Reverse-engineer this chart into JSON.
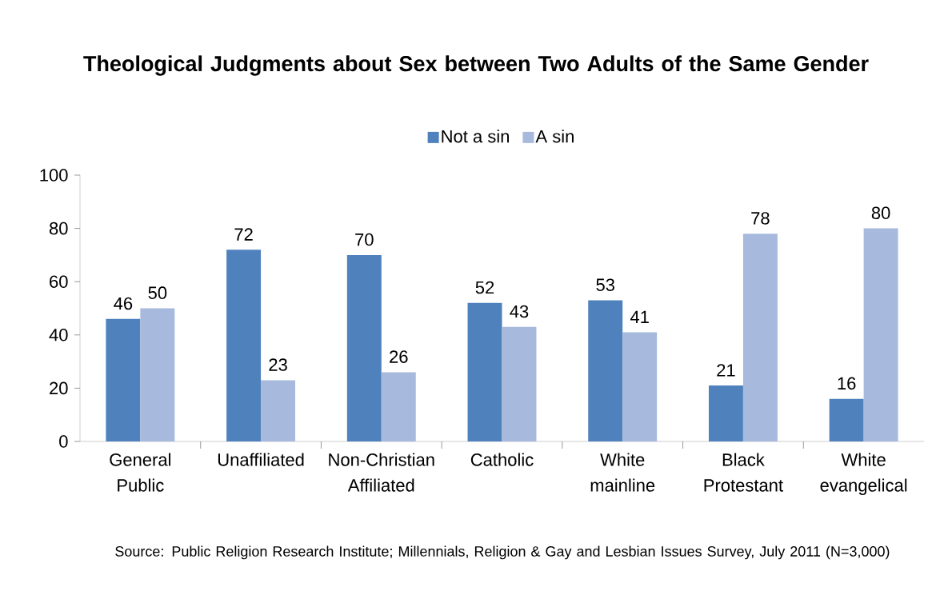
{
  "chart_data": {
    "type": "bar",
    "title": "Theological Judgments about Sex between Two Adults of the Same Gender",
    "categories": [
      "General Public",
      "Unaffiliated",
      "Non-Christian Affiliated",
      "Catholic",
      "White mainline",
      "Black Protestant",
      "White evangelical"
    ],
    "series": [
      {
        "name": "Not a sin",
        "color": "#4f81bd",
        "values": [
          46,
          72,
          70,
          52,
          53,
          21,
          16
        ]
      },
      {
        "name": "A sin",
        "color": "#a7b9dc",
        "values": [
          50,
          23,
          26,
          43,
          41,
          78,
          80
        ]
      }
    ],
    "ylim": [
      0,
      100
    ],
    "yticks": [
      0,
      20,
      40,
      60,
      80,
      100
    ],
    "data_labels": true,
    "legend": "top",
    "annotations": [
      "Source: Public Religion Research Institute; Millennials, Religion & Gay and Lesbian Issues Survey, July 2011 (N=3,000)"
    ]
  }
}
